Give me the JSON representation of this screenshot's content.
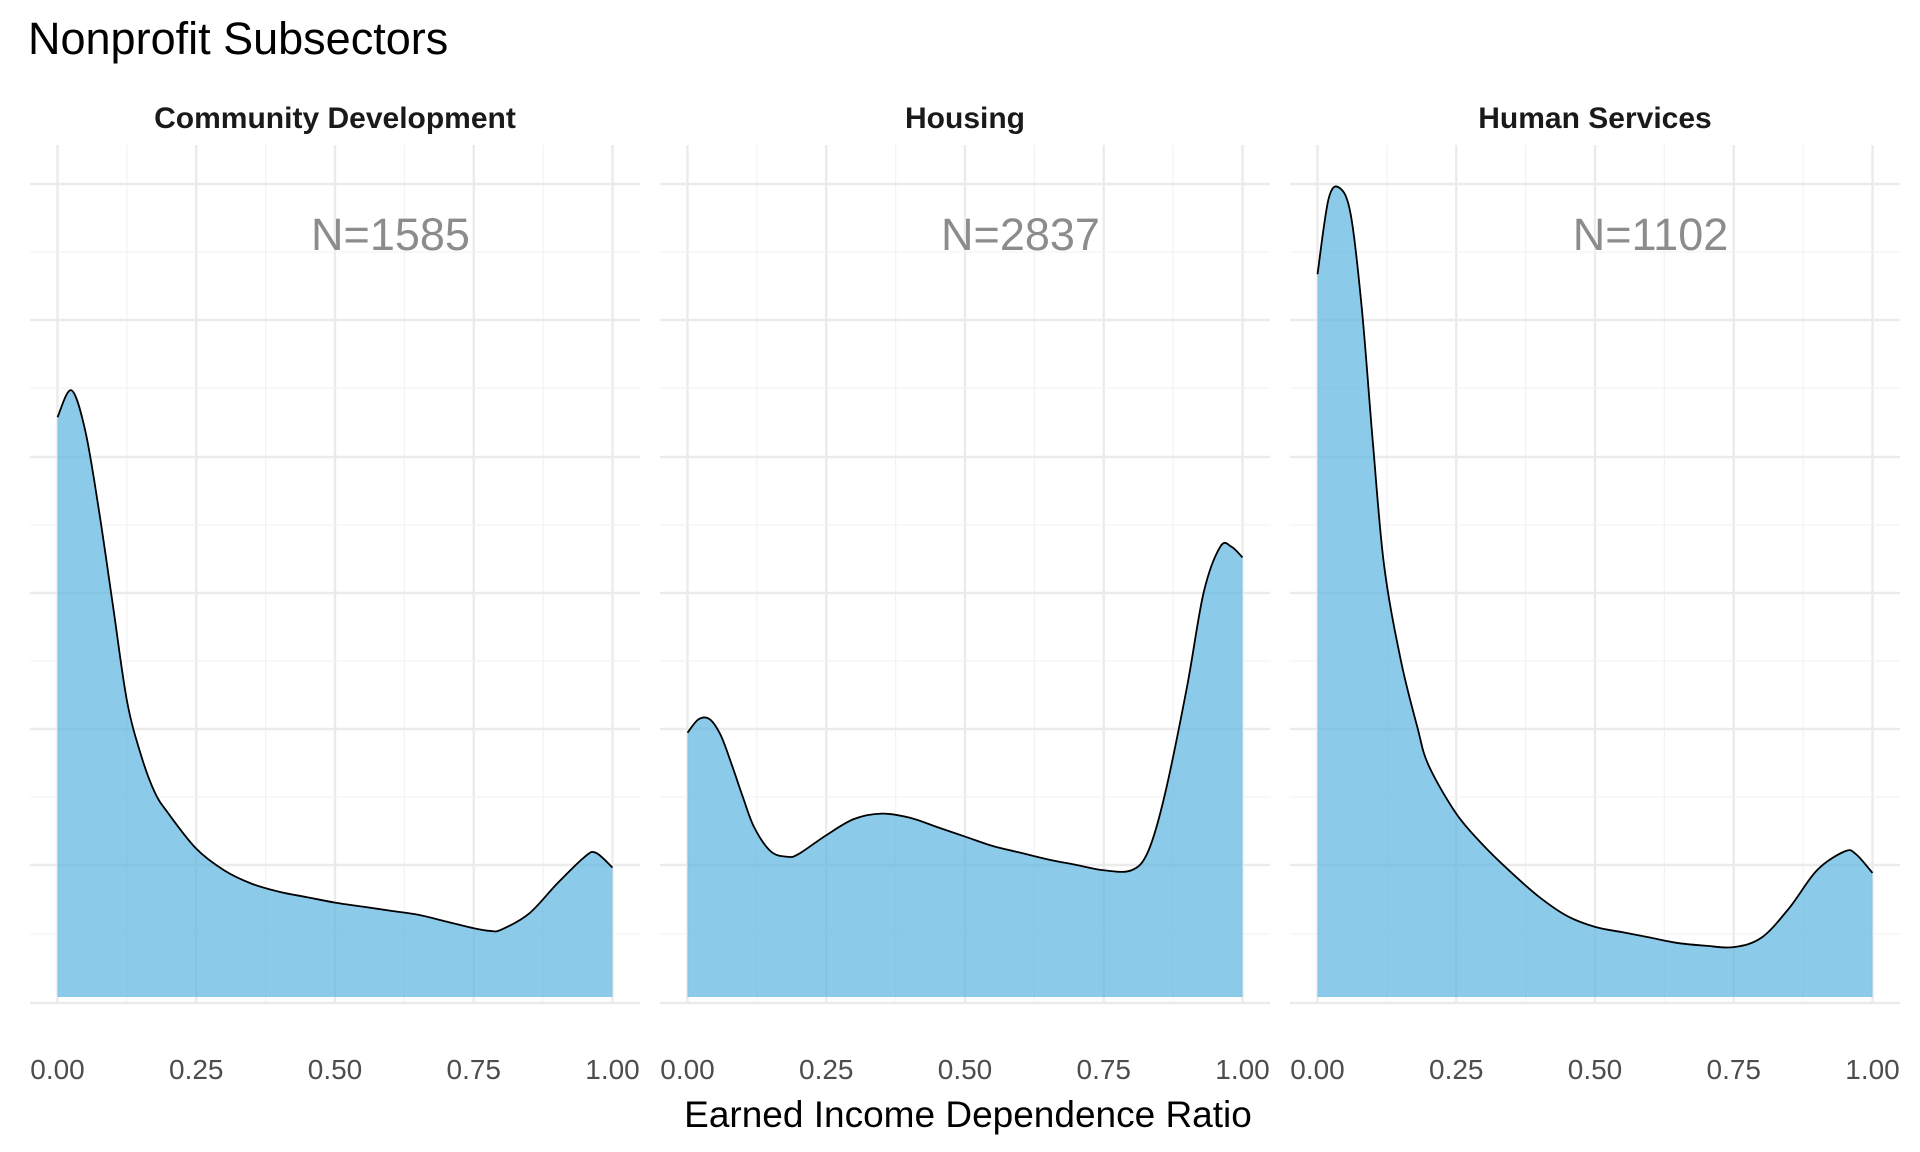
{
  "chart_data": {
    "type": "area",
    "title": "Nonprofit Subsectors",
    "xlabel": "Earned Income Dependence Ratio",
    "ylabel": "",
    "xlim": [
      0,
      1
    ],
    "ylim": [
      0,
      3.0
    ],
    "x_ticks": [
      0,
      0.25,
      0.5,
      0.75,
      1.0
    ],
    "x_tick_labels": [
      "0.00",
      "0.25",
      "0.50",
      "0.75",
      "1.00"
    ],
    "y_axis_labels_shown": false,
    "grid": true,
    "fill_color": "#5ab4e0",
    "line_color": "#000000",
    "annotation_color": "#8c8c8c",
    "panels": [
      {
        "name": "Community Development",
        "annotation": "N=1585",
        "x": [
          0,
          0.025,
          0.05,
          0.075,
          0.1,
          0.125,
          0.15,
          0.175,
          0.2,
          0.25,
          0.3,
          0.35,
          0.4,
          0.45,
          0.5,
          0.55,
          0.6,
          0.65,
          0.7,
          0.75,
          0.78,
          0.8,
          0.85,
          0.9,
          0.95,
          0.97,
          1.0
        ],
        "y": [
          2.15,
          2.25,
          2.1,
          1.8,
          1.45,
          1.1,
          0.9,
          0.76,
          0.68,
          0.55,
          0.47,
          0.42,
          0.39,
          0.37,
          0.35,
          0.335,
          0.32,
          0.305,
          0.28,
          0.255,
          0.245,
          0.25,
          0.31,
          0.42,
          0.52,
          0.535,
          0.48
        ]
      },
      {
        "name": "Housing",
        "annotation": "N=2837",
        "x": [
          0,
          0.02,
          0.04,
          0.06,
          0.08,
          0.1,
          0.12,
          0.15,
          0.18,
          0.2,
          0.25,
          0.3,
          0.35,
          0.4,
          0.45,
          0.5,
          0.55,
          0.6,
          0.65,
          0.7,
          0.75,
          0.8,
          0.83,
          0.86,
          0.9,
          0.93,
          0.96,
          0.98,
          1.0
        ],
        "y": [
          0.98,
          1.03,
          1.03,
          0.97,
          0.86,
          0.74,
          0.63,
          0.54,
          0.52,
          0.53,
          0.6,
          0.66,
          0.68,
          0.665,
          0.63,
          0.595,
          0.56,
          0.535,
          0.51,
          0.49,
          0.47,
          0.47,
          0.54,
          0.75,
          1.15,
          1.5,
          1.67,
          1.67,
          1.63
        ]
      },
      {
        "name": "Human Services",
        "annotation": "N=1102",
        "x": [
          0,
          0.02,
          0.04,
          0.06,
          0.08,
          0.1,
          0.12,
          0.15,
          0.18,
          0.2,
          0.25,
          0.3,
          0.35,
          0.4,
          0.45,
          0.5,
          0.55,
          0.6,
          0.65,
          0.7,
          0.75,
          0.8,
          0.85,
          0.9,
          0.95,
          0.97,
          1.0
        ],
        "y": [
          2.68,
          2.96,
          3.0,
          2.9,
          2.55,
          2.05,
          1.6,
          1.25,
          1.0,
          0.86,
          0.68,
          0.56,
          0.46,
          0.37,
          0.3,
          0.26,
          0.24,
          0.22,
          0.2,
          0.19,
          0.185,
          0.22,
          0.33,
          0.47,
          0.54,
          0.53,
          0.46
        ]
      }
    ]
  }
}
